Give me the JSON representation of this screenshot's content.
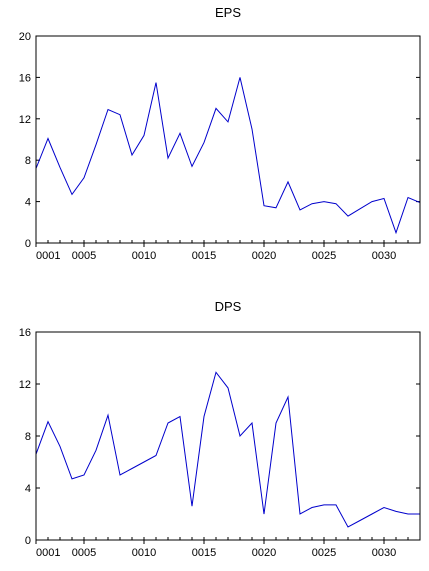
{
  "chart_data": [
    {
      "type": "line",
      "title": "EPS",
      "xlabel": "",
      "ylabel": "",
      "ylim": [
        0,
        20
      ],
      "y_ticks": [
        0,
        4,
        8,
        12,
        16,
        20
      ],
      "x_tick_labels": [
        "0001",
        "0005",
        "0010",
        "0015",
        "0020",
        "0025",
        "0030"
      ],
      "x_tick_positions": [
        1,
        5,
        10,
        15,
        20,
        25,
        30
      ],
      "x": [
        1,
        2,
        3,
        4,
        5,
        6,
        7,
        8,
        9,
        10,
        11,
        12,
        13,
        14,
        15,
        16,
        17,
        18,
        19,
        20,
        21,
        22,
        23,
        24,
        25,
        26,
        27,
        28,
        29,
        30,
        31,
        32,
        33
      ],
      "series": [
        {
          "color": "#0000cc",
          "values": [
            7.2,
            10.1,
            7.3,
            4.7,
            6.3,
            9.5,
            12.9,
            12.4,
            8.5,
            10.4,
            15.5,
            8.2,
            10.6,
            7.4,
            9.7,
            13.0,
            11.7,
            16.0,
            11.0,
            3.6,
            3.4,
            5.9,
            3.2,
            3.8,
            4.0,
            3.8,
            2.6,
            3.3,
            4.0,
            4.3,
            1.0,
            4.4,
            3.9
          ]
        }
      ]
    },
    {
      "type": "line",
      "title": "DPS",
      "xlabel": "",
      "ylabel": "",
      "ylim": [
        0,
        16
      ],
      "y_ticks": [
        0,
        4,
        8,
        12,
        16
      ],
      "x_tick_labels": [
        "0001",
        "0005",
        "0010",
        "0015",
        "0020",
        "0025",
        "0030"
      ],
      "x_tick_positions": [
        1,
        5,
        10,
        15,
        20,
        25,
        30
      ],
      "x": [
        1,
        2,
        3,
        4,
        5,
        6,
        7,
        8,
        9,
        10,
        11,
        12,
        13,
        14,
        15,
        16,
        17,
        18,
        19,
        20,
        21,
        22,
        23,
        24,
        25,
        26,
        27,
        28,
        29,
        30,
        31,
        32,
        33
      ],
      "series": [
        {
          "color": "#0000cc",
          "values": [
            6.6,
            9.1,
            7.2,
            4.7,
            5.0,
            6.9,
            9.6,
            5.0,
            5.5,
            6.0,
            6.5,
            9.0,
            9.5,
            2.6,
            9.5,
            12.9,
            11.7,
            8.0,
            9.0,
            2.0,
            9.0,
            11.0,
            2.0,
            2.5,
            2.7,
            2.7,
            1.0,
            1.5,
            2.0,
            2.5,
            2.2,
            2.0,
            2.0
          ]
        }
      ]
    }
  ]
}
